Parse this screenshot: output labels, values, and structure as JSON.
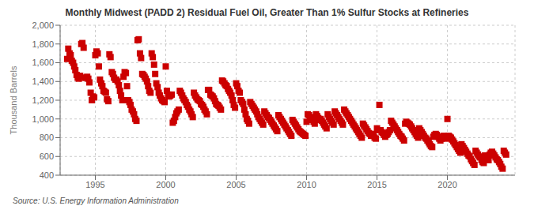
{
  "chart_data": {
    "type": "scatter",
    "title": "Monthly Midwest (PADD 2) Residual Fuel Oil, Greater Than 1% Sulfur Stocks at Refineries",
    "y_label": "Thousand Barrels",
    "annotations": [
      "Source: U.S. Energy Information Administration"
    ],
    "color": "#cc0000",
    "marker": "square",
    "grid": true,
    "xlim": [
      1992.5,
      2024.8
    ],
    "xticks": [
      1995,
      2000,
      2005,
      2010,
      2015,
      2020
    ],
    "ylim": [
      400,
      2000
    ],
    "yticks": [
      400,
      600,
      800,
      {
        "value": 1000,
        "label": "1,000"
      },
      {
        "value": 1200,
        "label": "1,200"
      },
      {
        "value": 1400,
        "label": "1,400"
      },
      {
        "value": 1600,
        "label": "1,600"
      },
      {
        "value": 1800,
        "label": "1,800"
      },
      {
        "value": 2000,
        "label": "2,000"
      }
    ],
    "x": [
      1993.0,
      1993.08,
      1993.17,
      1993.25,
      1993.33,
      1993.42,
      1993.5,
      1993.58,
      1993.67,
      1993.75,
      1993.83,
      1993.92,
      1994.0,
      1994.08,
      1994.17,
      1994.25,
      1994.33,
      1994.42,
      1994.5,
      1994.58,
      1994.67,
      1994.75,
      1994.83,
      1994.92,
      1995.0,
      1995.08,
      1995.17,
      1995.25,
      1995.33,
      1995.42,
      1995.5,
      1995.58,
      1995.67,
      1995.75,
      1995.83,
      1995.92,
      1996.0,
      1996.08,
      1996.17,
      1996.25,
      1996.33,
      1996.42,
      1996.5,
      1996.58,
      1996.67,
      1996.75,
      1996.83,
      1996.92,
      1997.0,
      1997.08,
      1997.17,
      1997.25,
      1997.33,
      1997.42,
      1997.5,
      1997.58,
      1997.67,
      1997.75,
      1997.83,
      1997.92,
      1998.0,
      1998.08,
      1998.17,
      1998.25,
      1998.33,
      1998.42,
      1998.5,
      1998.58,
      1998.67,
      1998.75,
      1998.83,
      1998.92,
      1999.0,
      1999.08,
      1999.17,
      1999.25,
      1999.33,
      1999.42,
      1999.5,
      1999.58,
      1999.67,
      1999.75,
      1999.83,
      1999.92,
      2000.0,
      2000.08,
      2000.17,
      2000.25,
      2000.33,
      2000.42,
      2000.5,
      2000.58,
      2000.67,
      2000.75,
      2000.83,
      2000.92,
      2001.0,
      2001.08,
      2001.17,
      2001.25,
      2001.33,
      2001.42,
      2001.5,
      2001.58,
      2001.67,
      2001.75,
      2001.83,
      2001.92,
      2002.0,
      2002.08,
      2002.17,
      2002.25,
      2002.33,
      2002.42,
      2002.5,
      2002.58,
      2002.67,
      2002.75,
      2002.83,
      2002.92,
      2003.0,
      2003.08,
      2003.17,
      2003.25,
      2003.33,
      2003.42,
      2003.5,
      2003.58,
      2003.67,
      2003.75,
      2003.83,
      2003.92,
      2004.0,
      2004.08,
      2004.17,
      2004.25,
      2004.33,
      2004.42,
      2004.5,
      2004.58,
      2004.67,
      2004.75,
      2004.83,
      2004.92,
      2005.0,
      2005.08,
      2005.17,
      2005.25,
      2005.33,
      2005.42,
      2005.5,
      2005.58,
      2005.67,
      2005.75,
      2005.83,
      2005.92,
      2006.0,
      2006.08,
      2006.17,
      2006.25,
      2006.33,
      2006.42,
      2006.5,
      2006.58,
      2006.67,
      2006.75,
      2006.83,
      2006.92,
      2007.0,
      2007.08,
      2007.17,
      2007.25,
      2007.33,
      2007.42,
      2007.5,
      2007.58,
      2007.67,
      2007.75,
      2007.83,
      2007.92,
      2008.0,
      2008.08,
      2008.17,
      2008.25,
      2008.33,
      2008.42,
      2008.5,
      2008.58,
      2008.67,
      2008.75,
      2008.83,
      2008.92,
      2009.0,
      2009.08,
      2009.17,
      2009.25,
      2009.33,
      2009.42,
      2009.5,
      2009.58,
      2009.67,
      2009.75,
      2009.83,
      2009.92,
      2010.0,
      2010.08,
      2010.17,
      2010.25,
      2010.33,
      2010.42,
      2010.5,
      2010.58,
      2010.67,
      2010.75,
      2010.83,
      2010.92,
      2011.0,
      2011.08,
      2011.17,
      2011.25,
      2011.33,
      2011.42,
      2011.5,
      2011.58,
      2011.67,
      2011.75,
      2011.83,
      2011.92,
      2012.0,
      2012.08,
      2012.17,
      2012.25,
      2012.33,
      2012.42,
      2012.5,
      2012.58,
      2012.67,
      2012.75,
      2012.83,
      2012.92,
      2013.0,
      2013.08,
      2013.17,
      2013.25,
      2013.33,
      2013.42,
      2013.5,
      2013.58,
      2013.67,
      2013.75,
      2013.83,
      2013.92,
      2014.0,
      2014.08,
      2014.17,
      2014.25,
      2014.33,
      2014.42,
      2014.5,
      2014.58,
      2014.67,
      2014.75,
      2014.83,
      2014.92,
      2015.0,
      2015.08,
      2015.17,
      2015.25,
      2015.33,
      2015.42,
      2015.5,
      2015.58,
      2015.67,
      2015.75,
      2015.83,
      2015.92,
      2016.0,
      2016.08,
      2016.17,
      2016.25,
      2016.33,
      2016.42,
      2016.5,
      2016.58,
      2016.67,
      2016.75,
      2016.83,
      2016.92,
      2017.0,
      2017.08,
      2017.17,
      2017.25,
      2017.33,
      2017.42,
      2017.5,
      2017.58,
      2017.67,
      2017.75,
      2017.83,
      2017.92,
      2018.0,
      2018.08,
      2018.17,
      2018.25,
      2018.33,
      2018.42,
      2018.5,
      2018.58,
      2018.67,
      2018.75,
      2018.83,
      2018.92,
      2019.0,
      2019.08,
      2019.17,
      2019.25,
      2019.33,
      2019.42,
      2019.5,
      2019.58,
      2019.67,
      2019.75,
      2019.83,
      2019.92,
      2020.0,
      2020.08,
      2020.17,
      2020.25,
      2020.33,
      2020.42,
      2020.5,
      2020.58,
      2020.67,
      2020.75,
      2020.83,
      2020.92,
      2021.0,
      2021.08,
      2021.17,
      2021.25,
      2021.33,
      2021.42,
      2021.5,
      2021.58,
      2021.67,
      2021.75,
      2021.83,
      2021.92,
      2022.0,
      2022.08,
      2022.17,
      2022.25,
      2022.33,
      2022.42,
      2022.5,
      2022.58,
      2022.67,
      2022.75,
      2022.83,
      2022.92,
      2023.0,
      2023.08,
      2023.17,
      2023.25,
      2023.33,
      2023.42,
      2023.5,
      2023.58,
      2023.67,
      2023.75,
      2023.83,
      2023.92,
      2024.0,
      2024.08,
      2024.17
    ],
    "values": [
      1640,
      1750,
      1700,
      1680,
      1620,
      1600,
      1560,
      1520,
      1470,
      1440,
      1430,
      1460,
      1800,
      1810,
      1760,
      1440,
      1440,
      1450,
      1430,
      1390,
      1280,
      1200,
      1240,
      1230,
      1680,
      1720,
      1700,
      1560,
      1420,
      1380,
      1350,
      1300,
      1290,
      1280,
      1210,
      1190,
      1690,
      1660,
      1500,
      1480,
      1440,
      1420,
      1420,
      1400,
      1360,
      1300,
      1250,
      1200,
      1450,
      1500,
      1490,
      1350,
      1200,
      1180,
      1150,
      1100,
      1080,
      1050,
      1000,
      980,
      1840,
      1850,
      1700,
      1650,
      1480,
      1470,
      1450,
      1430,
      1400,
      1350,
      1300,
      1280,
      1700,
      1660,
      1580,
      1480,
      1380,
      1340,
      1280,
      1250,
      1220,
      1200,
      1190,
      1180,
      1560,
      1300,
      1260,
      1240,
      1250,
      1260,
      960,
      980,
      1020,
      1060,
      1080,
      1100,
      1300,
      1280,
      1250,
      1220,
      1200,
      1180,
      1150,
      1130,
      1100,
      1080,
      1050,
      1020,
      1280,
      1250,
      1230,
      1210,
      1200,
      1190,
      1160,
      1150,
      1130,
      1100,
      1080,
      1050,
      1310,
      1310,
      1260,
      1250,
      1240,
      1220,
      1190,
      1160,
      1150,
      1140,
      1120,
      1100,
      1410,
      1400,
      1380,
      1360,
      1350,
      1320,
      1300,
      1280,
      1250,
      1200,
      1150,
      1120,
      1380,
      1350,
      1300,
      1280,
      1200,
      1180,
      1160,
      1100,
      1050,
      1000,
      980,
      950,
      1180,
      1160,
      1140,
      1120,
      1100,
      1080,
      1050,
      1020,
      1000,
      980,
      960,
      940,
      1080,
      1060,
      1040,
      1020,
      1010,
      990,
      970,
      950,
      930,
      910,
      890,
      870,
      1040,
      1020,
      1000,
      980,
      960,
      940,
      920,
      900,
      880,
      860,
      840,
      820,
      990,
      970,
      950,
      930,
      910,
      890,
      870,
      860,
      850,
      840,
      830,
      820,
      970,
      1050,
      1040,
      1020,
      1000,
      990,
      970,
      950,
      1050,
      1030,
      1010,
      990,
      1000,
      980,
      960,
      940,
      920,
      900,
      1050,
      1020,
      1000,
      980,
      960,
      940,
      1080,
      1060,
      1040,
      1020,
      1000,
      980,
      960,
      940,
      1100,
      1080,
      1060,
      1040,
      1020,
      1000,
      980,
      960,
      940,
      920,
      900,
      880,
      860,
      840,
      820,
      800,
      950,
      930,
      910,
      890,
      870,
      850,
      840,
      820,
      840,
      820,
      800,
      790,
      900,
      880,
      1150,
      880,
      860,
      850,
      830,
      810,
      830,
      840,
      860,
      880,
      980,
      960,
      940,
      920,
      900,
      880,
      860,
      840,
      820,
      810,
      790,
      770,
      950,
      970,
      960,
      950,
      940,
      920,
      900,
      880,
      860,
      840,
      820,
      800,
      900,
      880,
      860,
      840,
      820,
      800,
      790,
      770,
      750,
      730,
      710,
      700,
      810,
      830,
      840,
      830,
      810,
      790,
      770,
      790,
      810,
      820,
      800,
      790,
      1000,
      820,
      810,
      800,
      780,
      760,
      740,
      720,
      700,
      680,
      660,
      640,
      730,
      710,
      690,
      670,
      650,
      630,
      610,
      600,
      570,
      550,
      530,
      510,
      660,
      640,
      620,
      600,
      590,
      560,
      540,
      530,
      610,
      590,
      570,
      560,
      620,
      640,
      650,
      630,
      610,
      590,
      570,
      560,
      540,
      520,
      490,
      470,
      660,
      640,
      620
    ]
  }
}
